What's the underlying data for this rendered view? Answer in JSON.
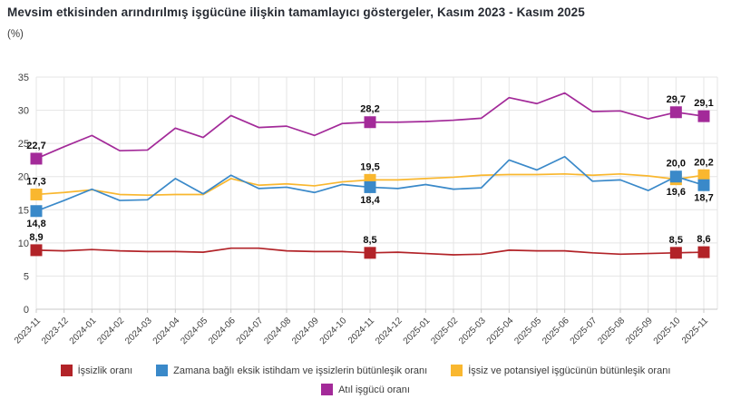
{
  "header": {
    "title": "Mevsim etkisinden arındırılmış işgücüne ilişkin tamamlayıcı göstergeler, Kasım 2023 - Kasım 2025",
    "unit_label": "(%)"
  },
  "chart_data": {
    "type": "line",
    "title": "Mevsim etkisinden arındırılmış işgücüne ilişkin tamamlayıcı göstergeler, Kasım 2023 - Kasım 2025",
    "ylabel": "%",
    "ylim": [
      0,
      35
    ],
    "yticks": [
      0,
      5,
      10,
      15,
      20,
      25,
      30,
      35
    ],
    "grid": true,
    "legend_position": "bottom",
    "marker_style": "square-at-labeled-points",
    "style": {
      "grid_color": "#e5e5e5",
      "axis_line_color": "#c9c9c9",
      "tick_label_color": "#404040",
      "data_label_color": "#0d0d0d"
    },
    "x": [
      "2023-11",
      "2023-12",
      "2024-01",
      "2024-02",
      "2024-03",
      "2024-04",
      "2024-05",
      "2024-06",
      "2024-07",
      "2024-08",
      "2024-09",
      "2024-10",
      "2024-11",
      "2024-12",
      "2025-01",
      "2025-02",
      "2025-03",
      "2025-04",
      "2025-05",
      "2025-06",
      "2025-07",
      "2025-08",
      "2025-09",
      "2025-10",
      "2025-11"
    ],
    "series": [
      {
        "id": "issizlik-orani",
        "name": "İşsizlik oranı",
        "color": "#b22328",
        "values": [
          8.9,
          8.8,
          9.0,
          8.8,
          8.7,
          8.7,
          8.6,
          9.2,
          9.2,
          8.8,
          8.7,
          8.7,
          8.5,
          8.6,
          8.4,
          8.2,
          8.3,
          8.9,
          8.8,
          8.8,
          8.5,
          8.3,
          8.4,
          8.5,
          8.6
        ],
        "labels": [
          {
            "i": 0,
            "text": "8,9",
            "pos": "above"
          },
          {
            "i": 12,
            "text": "8,5",
            "pos": "above"
          },
          {
            "i": 23,
            "text": "8,5",
            "pos": "above"
          },
          {
            "i": 24,
            "text": "8,6",
            "pos": "above"
          }
        ]
      },
      {
        "id": "zamana-bagli-eksik-istihdam",
        "name": "Zamana bağlı eksik istihdam ve işsizlerin bütünleşik oranı",
        "color": "#3a89c9",
        "values": [
          14.8,
          16.4,
          18.1,
          16.4,
          16.5,
          19.7,
          17.4,
          20.2,
          18.2,
          18.4,
          17.6,
          18.8,
          18.4,
          18.2,
          18.8,
          18.1,
          18.3,
          22.5,
          21.0,
          23.0,
          19.3,
          19.5,
          17.9,
          20.0,
          18.7
        ],
        "labels": [
          {
            "i": 0,
            "text": "14,8",
            "pos": "below"
          },
          {
            "i": 12,
            "text": "18,4",
            "pos": "below"
          },
          {
            "i": 23,
            "text": "20,0",
            "pos": "above"
          },
          {
            "i": 24,
            "text": "18,7",
            "pos": "below"
          }
        ]
      },
      {
        "id": "issiz-ve-potansiyel-isgucu",
        "name": "İşsiz ve potansiyel işgücünün bütünleşik oranı",
        "color": "#f9b72f",
        "values": [
          17.3,
          17.6,
          18.0,
          17.3,
          17.2,
          17.3,
          17.3,
          19.7,
          18.7,
          18.9,
          18.6,
          19.2,
          19.5,
          19.5,
          19.7,
          19.9,
          20.2,
          20.3,
          20.3,
          20.4,
          20.2,
          20.4,
          20.1,
          19.6,
          20.2
        ],
        "labels": [
          {
            "i": 0,
            "text": "17,3",
            "pos": "above"
          },
          {
            "i": 12,
            "text": "19,5",
            "pos": "above"
          },
          {
            "i": 23,
            "text": "19,6",
            "pos": "below"
          },
          {
            "i": 24,
            "text": "20,2",
            "pos": "above"
          }
        ]
      },
      {
        "id": "atil-isgucu-orani",
        "name": "Atıl işgücü oranı",
        "color": "#a32a99",
        "values": [
          22.7,
          24.5,
          26.2,
          23.9,
          24.0,
          27.3,
          25.9,
          29.2,
          27.4,
          27.6,
          26.2,
          28.0,
          28.2,
          28.2,
          28.3,
          28.5,
          28.8,
          31.9,
          31.0,
          32.6,
          29.8,
          29.9,
          28.7,
          29.7,
          29.1
        ],
        "labels": [
          {
            "i": 0,
            "text": "22,7",
            "pos": "above"
          },
          {
            "i": 12,
            "text": "28,2",
            "pos": "above"
          },
          {
            "i": 23,
            "text": "29,7",
            "pos": "above"
          },
          {
            "i": 24,
            "text": "29,1",
            "pos": "above"
          }
        ]
      }
    ]
  }
}
